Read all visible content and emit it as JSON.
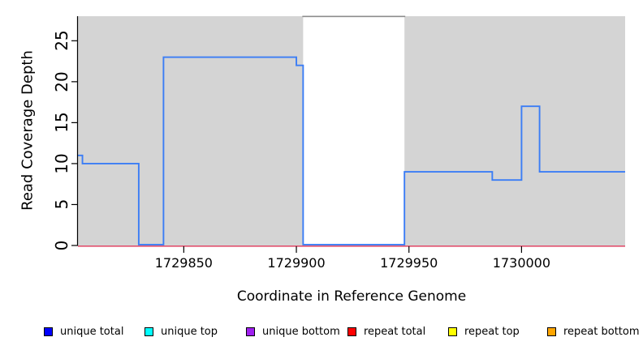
{
  "chart_data": {
    "type": "line",
    "subtype": "step-coverage-plot",
    "title": "",
    "xlabel": "Coordinate in Reference Genome",
    "ylabel": "Read Coverage Depth",
    "xlim": [
      1729803,
      1730046
    ],
    "ylim": [
      0,
      28
    ],
    "xticks": [
      1729850,
      1729900,
      1729950,
      1730000
    ],
    "yticks": [
      0,
      5,
      10,
      15,
      20,
      25
    ],
    "grid": false,
    "plot_bg_color": "#d4d4d4",
    "axis_color": "#000000",
    "uncovered_region": {
      "start": 1729903,
      "end": 1729948,
      "fill": "#ffffff",
      "top_border_color": "#8d8d8d"
    },
    "series": [
      {
        "name": "unique total",
        "color": "#3b7df5",
        "style": "step",
        "points": [
          [
            1729803,
            11
          ],
          [
            1729805,
            11
          ],
          [
            1729805,
            10
          ],
          [
            1729830,
            10
          ],
          [
            1729830,
            0
          ],
          [
            1729841,
            0
          ],
          [
            1729841,
            23
          ],
          [
            1729900,
            23
          ],
          [
            1729900,
            22
          ],
          [
            1729903,
            22
          ],
          [
            1729903,
            0
          ],
          [
            1729948,
            0
          ],
          [
            1729948,
            9
          ],
          [
            1729987,
            9
          ],
          [
            1729987,
            8
          ],
          [
            1730000,
            8
          ],
          [
            1730000,
            17
          ],
          [
            1730008,
            17
          ],
          [
            1730008,
            9
          ],
          [
            1730046,
            9
          ]
        ]
      },
      {
        "name": "repeat total",
        "color": "#e0506e",
        "style": "flat-zero",
        "points": [
          [
            1729803,
            0
          ],
          [
            1730046,
            0
          ]
        ]
      }
    ],
    "legend": [
      {
        "label": "unique total",
        "color": "#0000ff"
      },
      {
        "label": "unique top",
        "color": "#00ffff"
      },
      {
        "label": "unique bottom",
        "color": "#a020f0"
      },
      {
        "label": "repeat total",
        "color": "#ff0000"
      },
      {
        "label": "repeat top",
        "color": "#ffff00"
      },
      {
        "label": "repeat bottom",
        "color": "#ffa500"
      }
    ],
    "legend_position": "bottom"
  }
}
